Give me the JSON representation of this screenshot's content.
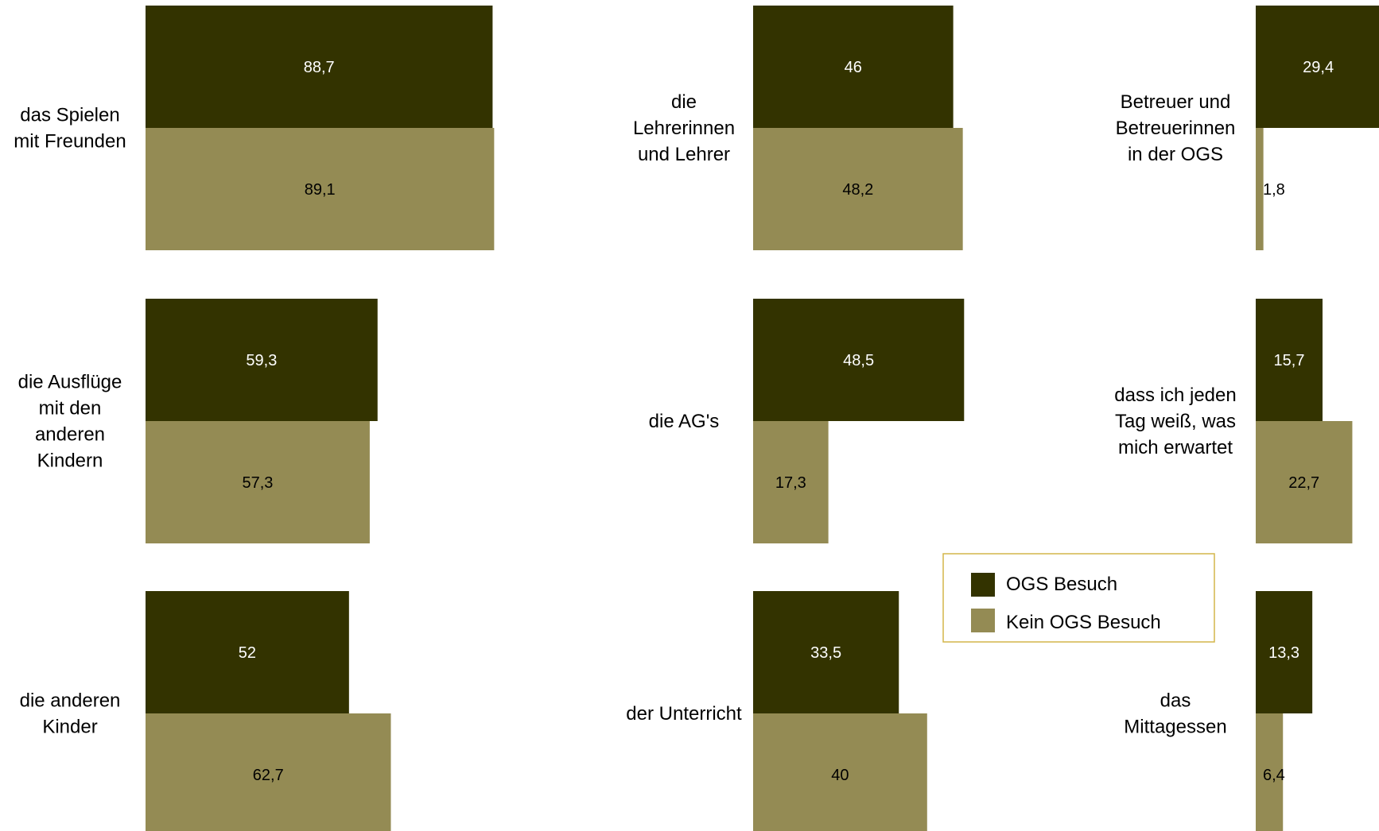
{
  "colors": {
    "ogs": "#333300",
    "kein": "#948B54",
    "legend_border": "#D4B64A"
  },
  "legend": {
    "items": [
      {
        "label": "OGS Besuch",
        "color": "#333300"
      },
      {
        "label": "Kein OGS Besuch",
        "color": "#948B54"
      }
    ]
  },
  "chart_data": [
    {
      "type": "bar",
      "orientation": "horizontal",
      "categories": [
        "das Spielen mit Freunden"
      ],
      "series": [
        {
          "name": "OGS Besuch",
          "values": [
            88.7
          ],
          "labels": [
            "88,7"
          ]
        },
        {
          "name": "Kein OGS Besuch",
          "values": [
            89.1
          ],
          "labels": [
            "89,1"
          ]
        }
      ],
      "category_lines": [
        "das Spielen",
        "mit Freunden"
      ]
    },
    {
      "type": "bar",
      "orientation": "horizontal",
      "categories": [
        "die Ausflüge mit den anderen Kindern"
      ],
      "series": [
        {
          "name": "OGS Besuch",
          "values": [
            59.3
          ],
          "labels": [
            "59,3"
          ]
        },
        {
          "name": "Kein OGS Besuch",
          "values": [
            57.3
          ],
          "labels": [
            "57,3"
          ]
        }
      ],
      "category_lines": [
        "die Ausflüge",
        "mit den",
        "anderen",
        "Kindern"
      ]
    },
    {
      "type": "bar",
      "orientation": "horizontal",
      "categories": [
        "die anderen Kinder"
      ],
      "series": [
        {
          "name": "OGS Besuch",
          "values": [
            52
          ],
          "labels": [
            "52"
          ]
        },
        {
          "name": "Kein OGS Besuch",
          "values": [
            62.7
          ],
          "labels": [
            "62,7"
          ]
        }
      ],
      "category_lines": [
        "die anderen",
        "Kinder"
      ]
    },
    {
      "type": "bar",
      "orientation": "horizontal",
      "categories": [
        "die Lehrerinnen und Lehrer"
      ],
      "series": [
        {
          "name": "OGS Besuch",
          "values": [
            46
          ],
          "labels": [
            "46"
          ]
        },
        {
          "name": "Kein OGS Besuch",
          "values": [
            48.2
          ],
          "labels": [
            "48,2"
          ]
        }
      ],
      "category_lines": [
        "die",
        "Lehrerinnen",
        "und Lehrer"
      ]
    },
    {
      "type": "bar",
      "orientation": "horizontal",
      "categories": [
        "die AG's"
      ],
      "series": [
        {
          "name": "OGS Besuch",
          "values": [
            48.5
          ],
          "labels": [
            "48,5"
          ]
        },
        {
          "name": "Kein OGS Besuch",
          "values": [
            17.3
          ],
          "labels": [
            "17,3"
          ]
        }
      ],
      "category_lines": [
        "die AG's"
      ]
    },
    {
      "type": "bar",
      "orientation": "horizontal",
      "categories": [
        "der Unterricht"
      ],
      "series": [
        {
          "name": "OGS Besuch",
          "values": [
            33.5
          ],
          "labels": [
            "33,5"
          ]
        },
        {
          "name": "Kein OGS Besuch",
          "values": [
            40
          ],
          "labels": [
            "40"
          ]
        }
      ],
      "category_lines": [
        "der Unterricht"
      ]
    },
    {
      "type": "bar",
      "orientation": "horizontal",
      "categories": [
        "Betreuer und Betreuerinnen in der OGS"
      ],
      "series": [
        {
          "name": "OGS Besuch",
          "values": [
            29.4
          ],
          "labels": [
            "29,4"
          ]
        },
        {
          "name": "Kein OGS Besuch",
          "values": [
            1.8
          ],
          "labels": [
            "1,8"
          ]
        }
      ],
      "category_lines": [
        "Betreuer und",
        "Betreuerinnen",
        "in der OGS"
      ]
    },
    {
      "type": "bar",
      "orientation": "horizontal",
      "categories": [
        "dass ich jeden Tag weiß, was mich erwartet"
      ],
      "series": [
        {
          "name": "OGS Besuch",
          "values": [
            15.7
          ],
          "labels": [
            "15,7"
          ]
        },
        {
          "name": "Kein OGS Besuch",
          "values": [
            22.7
          ],
          "labels": [
            "22,7"
          ]
        }
      ],
      "category_lines": [
        "dass ich jeden",
        "Tag weiß, was",
        "mich erwartet"
      ]
    },
    {
      "type": "bar",
      "orientation": "horizontal",
      "categories": [
        "das Mittagessen"
      ],
      "series": [
        {
          "name": "OGS Besuch",
          "values": [
            13.3
          ],
          "labels": [
            "13,3"
          ]
        },
        {
          "name": "Kein OGS Besuch",
          "values": [
            6.4
          ],
          "labels": [
            "6,4"
          ]
        }
      ],
      "category_lines": [
        "das",
        "Mittagessen"
      ]
    }
  ]
}
